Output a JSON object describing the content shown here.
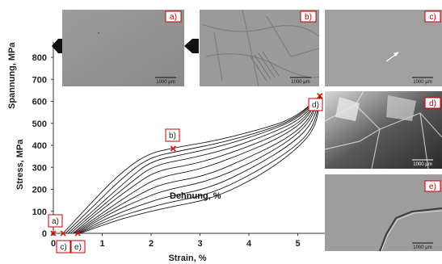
{
  "chart_data": {
    "type": "line",
    "xlabel": "Strain, %",
    "ylabel_primary": "Stress, MPa",
    "ylabel_secondary": "Spannung, MPa",
    "curve_annotation": "Dehnung, %",
    "xlim": [
      0,
      5.7
    ],
    "ylim": [
      0,
      870
    ],
    "x_ticks": [
      "0",
      "1",
      "2",
      "3",
      "4",
      "5"
    ],
    "y_ticks": [
      "0",
      "100",
      "200",
      "300",
      "400",
      "500",
      "600",
      "700",
      "800"
    ],
    "series": [
      {
        "points": [
          [
            0.2,
            0
          ],
          [
            0.7,
            120
          ],
          [
            1.3,
            260
          ],
          [
            1.9,
            360
          ],
          [
            2.5,
            390
          ],
          [
            3.3,
            420
          ],
          [
            4.2,
            470
          ],
          [
            4.9,
            520
          ],
          [
            5.4,
            610
          ]
        ]
      },
      {
        "points": [
          [
            0.25,
            0
          ],
          [
            0.8,
            120
          ],
          [
            1.4,
            250
          ],
          [
            1.95,
            345
          ],
          [
            2.6,
            375
          ],
          [
            3.4,
            410
          ],
          [
            4.3,
            465
          ],
          [
            4.95,
            520
          ],
          [
            5.4,
            610
          ]
        ]
      },
      {
        "points": [
          [
            0.3,
            0
          ],
          [
            0.9,
            120
          ],
          [
            1.5,
            240
          ],
          [
            2.0,
            330
          ],
          [
            2.7,
            360
          ],
          [
            3.5,
            400
          ],
          [
            4.35,
            460
          ],
          [
            5.0,
            520
          ],
          [
            5.42,
            612
          ]
        ]
      },
      {
        "points": [
          [
            0.35,
            0
          ],
          [
            0.95,
            115
          ],
          [
            1.55,
            225
          ],
          [
            2.05,
            310
          ],
          [
            2.8,
            340
          ],
          [
            3.6,
            385
          ],
          [
            4.4,
            450
          ],
          [
            5.05,
            515
          ],
          [
            5.42,
            612
          ]
        ]
      },
      {
        "points": [
          [
            0.4,
            0
          ],
          [
            1.0,
            110
          ],
          [
            1.6,
            210
          ],
          [
            2.1,
            285
          ],
          [
            2.9,
            315
          ],
          [
            3.7,
            370
          ],
          [
            4.5,
            440
          ],
          [
            5.1,
            510
          ],
          [
            5.43,
            614
          ]
        ]
      },
      {
        "points": [
          [
            0.42,
            0
          ],
          [
            1.05,
            100
          ],
          [
            1.65,
            190
          ],
          [
            2.15,
            255
          ],
          [
            3.0,
            290
          ],
          [
            3.8,
            355
          ],
          [
            4.6,
            430
          ],
          [
            5.15,
            510
          ],
          [
            5.43,
            615
          ]
        ]
      },
      {
        "points": [
          [
            0.45,
            0
          ],
          [
            1.1,
            95
          ],
          [
            1.7,
            170
          ],
          [
            2.2,
            225
          ],
          [
            3.1,
            260
          ],
          [
            3.9,
            335
          ],
          [
            4.7,
            420
          ],
          [
            5.2,
            505
          ],
          [
            5.44,
            616
          ]
        ]
      },
      {
        "points": [
          [
            0.48,
            0
          ],
          [
            1.15,
            90
          ],
          [
            1.75,
            150
          ],
          [
            2.25,
            195
          ],
          [
            3.15,
            235
          ],
          [
            4.0,
            315
          ],
          [
            4.8,
            415
          ],
          [
            5.25,
            505
          ],
          [
            5.44,
            617
          ]
        ]
      },
      {
        "points": [
          [
            0.5,
            0
          ],
          [
            1.2,
            80
          ],
          [
            1.8,
            130
          ],
          [
            2.3,
            165
          ],
          [
            3.2,
            205
          ],
          [
            4.1,
            300
          ],
          [
            4.9,
            410
          ],
          [
            5.3,
            500
          ],
          [
            5.45,
            618
          ]
        ]
      },
      {
        "points": [
          [
            0.52,
            0
          ],
          [
            1.25,
            70
          ],
          [
            1.85,
            110
          ],
          [
            2.35,
            140
          ],
          [
            3.25,
            180
          ],
          [
            4.2,
            285
          ],
          [
            5.0,
            400
          ],
          [
            5.35,
            495
          ],
          [
            5.45,
            620
          ]
        ]
      },
      {
        "points": [
          [
            0.55,
            0
          ],
          [
            1.3,
            60
          ],
          [
            1.9,
            95
          ],
          [
            2.4,
            120
          ],
          [
            3.3,
            160
          ],
          [
            4.3,
            270
          ],
          [
            5.05,
            395
          ],
          [
            5.38,
            490
          ],
          [
            5.46,
            622
          ]
        ]
      }
    ],
    "markers": [
      {
        "label": "a)",
        "x": 0.0,
        "y": 0
      },
      {
        "label": "c)",
        "x": 0.2,
        "y": 0
      },
      {
        "label": "e)",
        "x": 0.5,
        "y": 0
      },
      {
        "label": "b)",
        "x": 2.45,
        "y": 385
      },
      {
        "label": "d)",
        "x": 5.45,
        "y": 625
      }
    ]
  },
  "micrographs": [
    {
      "label": "a)",
      "scale": "1000 μm"
    },
    {
      "label": "b)",
      "scale": "1000 μm"
    },
    {
      "label": "c)",
      "scale": "1000 μm"
    },
    {
      "label": "d)",
      "scale": "1000 μm"
    },
    {
      "label": "e)",
      "scale": "1000 μm"
    }
  ],
  "colors": {
    "marker": "#e00000",
    "curve": "#1a1a1a",
    "tag_border": "#c00000"
  }
}
